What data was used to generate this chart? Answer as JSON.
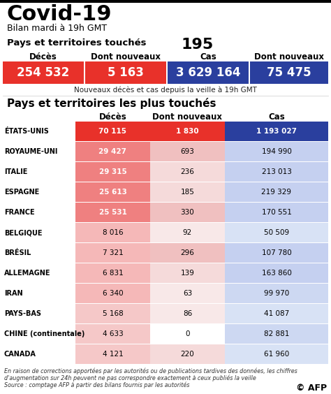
{
  "title": "Covid-19",
  "subtitle": "Bilan mardi à 19h GMT",
  "pays_label": "Pays et territoires touchés",
  "pays_value": "195",
  "header_cols": [
    "Décès",
    "Dont nouveaux",
    "Cas",
    "Dont nouveaux"
  ],
  "summary_values": [
    "254 532",
    "5 163",
    "3 629 164",
    "75 475"
  ],
  "summary_colors": [
    "#e8312a",
    "#e8312a",
    "#2a3f9e",
    "#2a3f9e"
  ],
  "summary_note": "Nouveaux décès et cas depuis la veille à 19h GMT",
  "section2_title": "Pays et territoires les plus touchés",
  "table_headers": [
    "Décès",
    "Dont nouveaux",
    "Cas"
  ],
  "countries": [
    "ÉTATS-UNIS",
    "ROYAUME-UNI",
    "ITALIE",
    "ESPAGNE",
    "FRANCE",
    "BELGIQUE",
    "BRÉSIL",
    "ALLEMAGNE",
    "IRAN",
    "PAYS-BAS",
    "CHINE (continentale)",
    "CANADA"
  ],
  "deces": [
    "70 115",
    "29 427",
    "29 315",
    "25 613",
    "25 531",
    "8 016",
    "7 321",
    "6 831",
    "6 340",
    "5 168",
    "4 633",
    "4 121"
  ],
  "dont_nouveaux": [
    "1 830",
    "693",
    "236",
    "185",
    "330",
    "92",
    "296",
    "139",
    "63",
    "86",
    "0",
    "220"
  ],
  "cas": [
    "1 193 027",
    "194 990",
    "213 013",
    "219 329",
    "170 551",
    "50 509",
    "107 780",
    "163 860",
    "99 970",
    "41 087",
    "82 881",
    "61 960"
  ],
  "deces_colors": [
    "#e8312a",
    "#ef8080",
    "#ef8080",
    "#ef8080",
    "#ef8080",
    "#f5b8b8",
    "#f5b8b8",
    "#f5b8b8",
    "#f5b8b8",
    "#f5c8c8",
    "#f5c8c8",
    "#f5c8c8"
  ],
  "deces_bold": [
    true,
    true,
    true,
    true,
    true,
    false,
    false,
    false,
    false,
    false,
    false,
    false
  ],
  "deces_white": [
    true,
    true,
    true,
    true,
    true,
    false,
    false,
    false,
    false,
    false,
    false,
    false
  ],
  "dont_nouveaux_colors": [
    "#e8312a",
    "#f0c0c0",
    "#f5dada",
    "#f5dada",
    "#f0c0c0",
    "#f8e8e8",
    "#f0c0c0",
    "#f5dada",
    "#f8e8e8",
    "#f8e8e8",
    "#ffffff",
    "#f5dada"
  ],
  "dont_nouveaux_bold": [
    true,
    false,
    false,
    false,
    false,
    false,
    false,
    false,
    false,
    false,
    false,
    false
  ],
  "dont_nouveaux_white": [
    true,
    false,
    false,
    false,
    false,
    false,
    false,
    false,
    false,
    false,
    false,
    false
  ],
  "cas_colors": [
    "#2a3f9e",
    "#c5d0f0",
    "#c5d0f0",
    "#c5d0f0",
    "#c5d0f0",
    "#d8e2f5",
    "#c5d0f0",
    "#c5d0f0",
    "#cdd8f2",
    "#d8e2f5",
    "#cdd8f2",
    "#d8e2f5"
  ],
  "cas_bold": [
    true,
    false,
    false,
    false,
    false,
    false,
    false,
    false,
    false,
    false,
    false,
    false
  ],
  "cas_white": [
    true,
    false,
    false,
    false,
    false,
    false,
    false,
    false,
    false,
    false,
    false,
    false
  ],
  "footnote1": "En raison de corrections apportées par les autorités ou de publications tardives des données, les chiffres",
  "footnote2": "d'augmentation sur 24h peuvent ne pas correspondre exactement à ceux publiés la veille",
  "footnote3": "Source : comptage AFP à partir des bilans fournis par les autorités",
  "afp_credit": "© AFP",
  "bg_color": "#ffffff"
}
